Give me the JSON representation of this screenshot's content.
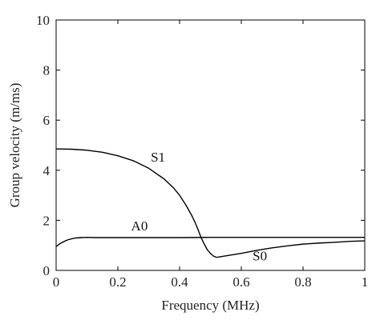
{
  "chart_data": {
    "type": "line",
    "title": "",
    "xlabel": "Frequency (MHz)",
    "ylabel": "Group velocity (m/ms)",
    "xlim": [
      0,
      1
    ],
    "ylim": [
      0,
      10
    ],
    "x_ticks": [
      0,
      0.2,
      0.4,
      0.6,
      0.8,
      1
    ],
    "x_tick_labels": [
      "0",
      "0.2",
      "0.4",
      "0.6",
      "0.8",
      "1"
    ],
    "y_ticks": [
      0,
      2,
      4,
      6,
      8,
      10
    ],
    "y_tick_labels": [
      "0",
      "2",
      "4",
      "6",
      "8",
      "10"
    ],
    "grid": false,
    "legend": "none",
    "line_color": "#000000",
    "series": [
      {
        "name": "A0",
        "x": [
          0,
          0.01,
          0.02,
          0.03,
          0.04,
          0.05,
          0.06,
          0.08,
          0.1,
          0.13,
          0.2,
          0.3,
          0.4,
          0.5,
          0.6,
          0.7,
          0.8,
          0.9,
          1.0
        ],
        "y": [
          0.95,
          1.05,
          1.12,
          1.18,
          1.23,
          1.26,
          1.29,
          1.31,
          1.32,
          1.31,
          1.31,
          1.31,
          1.31,
          1.32,
          1.32,
          1.32,
          1.32,
          1.32,
          1.32
        ]
      },
      {
        "name": "S1",
        "x": [
          0,
          0.05,
          0.1,
          0.15,
          0.2,
          0.25,
          0.3,
          0.35,
          0.38,
          0.4,
          0.42,
          0.44,
          0.45,
          0.46,
          0.47,
          0.48,
          0.49,
          0.5,
          0.51,
          0.52
        ],
        "y": [
          4.85,
          4.84,
          4.8,
          4.72,
          4.58,
          4.38,
          4.08,
          3.65,
          3.3,
          3.0,
          2.62,
          2.18,
          1.92,
          1.62,
          1.3,
          1.05,
          0.82,
          0.68,
          0.57,
          0.52
        ]
      },
      {
        "name": "S0",
        "x": [
          0.52,
          0.55,
          0.6,
          0.65,
          0.7,
          0.75,
          0.8,
          0.85,
          0.9,
          0.95,
          1.0
        ],
        "y": [
          0.52,
          0.58,
          0.68,
          0.8,
          0.9,
          0.98,
          1.05,
          1.09,
          1.12,
          1.16,
          1.18
        ]
      }
    ],
    "annotations": [
      {
        "text": "S1",
        "x": 0.33,
        "y": 4.35
      },
      {
        "text": "A0",
        "x": 0.27,
        "y": 1.6
      },
      {
        "text": "S0",
        "x": 0.66,
        "y": 0.4
      }
    ]
  }
}
